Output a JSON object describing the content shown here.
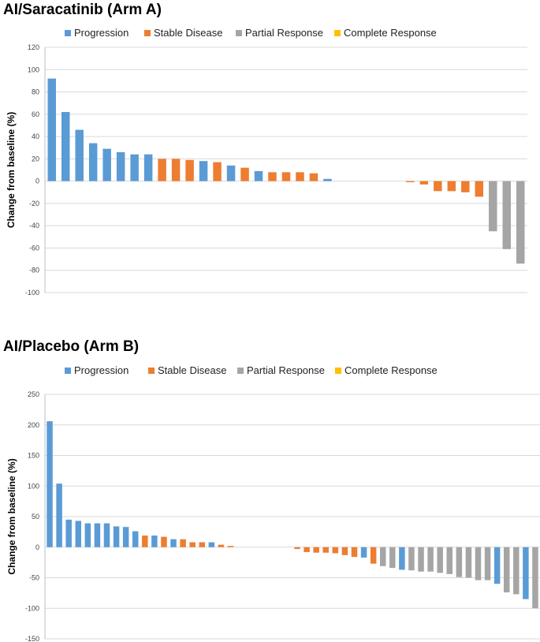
{
  "colors": {
    "Progression": "#5B9BD5",
    "Stable Disease": "#ED7D31",
    "Partial Response": "#A5A5A5",
    "Complete Response": "#FFC000"
  },
  "chart_data": [
    {
      "type": "bar",
      "title": "AI/Saracatinib (Arm A)",
      "ylabel": "Change from baseline (%)",
      "xlabel": "",
      "ylim": [
        -100,
        120
      ],
      "yticks": [
        120,
        100,
        80,
        60,
        40,
        20,
        0,
        -20,
        -40,
        -60,
        -80,
        -100
      ],
      "grid": true,
      "legend": "top",
      "legend_entries": [
        "Progression",
        "Stable Disease",
        "Partial Response",
        "Complete Response"
      ],
      "slots": 35,
      "bars": [
        {
          "value": 92,
          "category": "Progression"
        },
        {
          "value": 62,
          "category": "Progression"
        },
        {
          "value": 46,
          "category": "Progression"
        },
        {
          "value": 34,
          "category": "Progression"
        },
        {
          "value": 29,
          "category": "Progression"
        },
        {
          "value": 26,
          "category": "Progression"
        },
        {
          "value": 24,
          "category": "Progression"
        },
        {
          "value": 24,
          "category": "Progression"
        },
        {
          "value": 20,
          "category": "Stable Disease"
        },
        {
          "value": 20,
          "category": "Stable Disease"
        },
        {
          "value": 19,
          "category": "Stable Disease"
        },
        {
          "value": 18,
          "category": "Progression"
        },
        {
          "value": 17,
          "category": "Stable Disease"
        },
        {
          "value": 14,
          "category": "Progression"
        },
        {
          "value": 12,
          "category": "Stable Disease"
        },
        {
          "value": 9,
          "category": "Progression"
        },
        {
          "value": 8,
          "category": "Stable Disease"
        },
        {
          "value": 8,
          "category": "Stable Disease"
        },
        {
          "value": 8,
          "category": "Stable Disease"
        },
        {
          "value": 7,
          "category": "Stable Disease"
        },
        {
          "value": 2,
          "category": "Progression"
        },
        {
          "value": 0,
          "category": "Stable Disease"
        },
        {
          "value": 0,
          "category": "Stable Disease"
        },
        {
          "value": 0,
          "category": "Stable Disease"
        },
        {
          "value": 0,
          "category": "Stable Disease"
        },
        {
          "value": 0,
          "category": "Stable Disease"
        },
        {
          "value": -1,
          "category": "Stable Disease"
        },
        {
          "value": -3,
          "category": "Stable Disease"
        },
        {
          "value": -9,
          "category": "Stable Disease"
        },
        {
          "value": -9,
          "category": "Stable Disease"
        },
        {
          "value": -10,
          "category": "Stable Disease"
        },
        {
          "value": -14,
          "category": "Stable Disease"
        },
        {
          "value": -45,
          "category": "Partial Response"
        },
        {
          "value": -61,
          "category": "Partial Response"
        },
        {
          "value": -74,
          "category": "Partial Response"
        }
      ]
    },
    {
      "type": "bar",
      "title": "AI/Placebo (Arm B)",
      "ylabel": "Change from baseline (%)",
      "xlabel": "",
      "ylim": [
        -150,
        250
      ],
      "yticks": [
        250,
        200,
        150,
        100,
        50,
        0,
        -50,
        -100,
        -150
      ],
      "grid": true,
      "legend": "top",
      "legend_entries": [
        "Progression",
        "Stable Disease",
        "Partial Response",
        "Complete Response"
      ],
      "slots": 52,
      "bars": [
        {
          "value": 206,
          "category": "Progression"
        },
        {
          "value": 104,
          "category": "Progression"
        },
        {
          "value": 45,
          "category": "Progression"
        },
        {
          "value": 43,
          "category": "Progression"
        },
        {
          "value": 39,
          "category": "Progression"
        },
        {
          "value": 39,
          "category": "Progression"
        },
        {
          "value": 39,
          "category": "Progression"
        },
        {
          "value": 34,
          "category": "Progression"
        },
        {
          "value": 33,
          "category": "Progression"
        },
        {
          "value": 26,
          "category": "Progression"
        },
        {
          "value": 19,
          "category": "Stable Disease"
        },
        {
          "value": 19,
          "category": "Progression"
        },
        {
          "value": 17,
          "category": "Stable Disease"
        },
        {
          "value": 13,
          "category": "Progression"
        },
        {
          "value": 13,
          "category": "Stable Disease"
        },
        {
          "value": 8,
          "category": "Stable Disease"
        },
        {
          "value": 8,
          "category": "Stable Disease"
        },
        {
          "value": 8,
          "category": "Progression"
        },
        {
          "value": 4,
          "category": "Stable Disease"
        },
        {
          "value": 2,
          "category": "Stable Disease"
        },
        {
          "value": 0,
          "category": "Stable Disease"
        },
        {
          "value": 0,
          "category": "Stable Disease"
        },
        {
          "value": 0,
          "category": "Stable Disease"
        },
        {
          "value": 0,
          "category": "Stable Disease"
        },
        {
          "value": 0,
          "category": "Stable Disease"
        },
        {
          "value": 0,
          "category": "Stable Disease"
        },
        {
          "value": -3,
          "category": "Stable Disease"
        },
        {
          "value": -8,
          "category": "Stable Disease"
        },
        {
          "value": -9,
          "category": "Stable Disease"
        },
        {
          "value": -9,
          "category": "Stable Disease"
        },
        {
          "value": -10,
          "category": "Stable Disease"
        },
        {
          "value": -13,
          "category": "Stable Disease"
        },
        {
          "value": -16,
          "category": "Stable Disease"
        },
        {
          "value": -17,
          "category": "Progression"
        },
        {
          "value": -27,
          "category": "Stable Disease"
        },
        {
          "value": -31,
          "category": "Partial Response"
        },
        {
          "value": -34,
          "category": "Partial Response"
        },
        {
          "value": -37,
          "category": "Progression"
        },
        {
          "value": -38,
          "category": "Partial Response"
        },
        {
          "value": -40,
          "category": "Partial Response"
        },
        {
          "value": -40,
          "category": "Partial Response"
        },
        {
          "value": -42,
          "category": "Partial Response"
        },
        {
          "value": -44,
          "category": "Partial Response"
        },
        {
          "value": -49,
          "category": "Partial Response"
        },
        {
          "value": -50,
          "category": "Partial Response"
        },
        {
          "value": -54,
          "category": "Partial Response"
        },
        {
          "value": -54,
          "category": "Partial Response"
        },
        {
          "value": -60,
          "category": "Progression"
        },
        {
          "value": -74,
          "category": "Partial Response"
        },
        {
          "value": -77,
          "category": "Partial Response"
        },
        {
          "value": -85,
          "category": "Progression"
        },
        {
          "value": -100,
          "category": "Partial Response"
        }
      ]
    }
  ]
}
